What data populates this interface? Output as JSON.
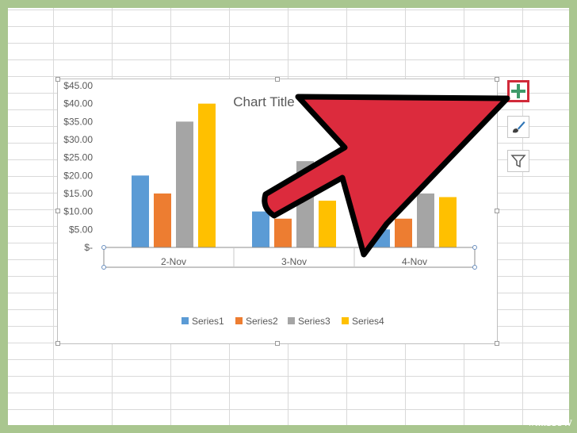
{
  "chart_data": {
    "type": "bar",
    "title": "Chart Title",
    "categories": [
      "2-Nov",
      "3-Nov",
      "4-Nov"
    ],
    "series": [
      {
        "name": "Series1",
        "color": "#5b9bd5",
        "values": [
          20,
          10,
          5
        ]
      },
      {
        "name": "Series2",
        "color": "#ed7d31",
        "values": [
          15,
          8,
          8
        ]
      },
      {
        "name": "Series3",
        "color": "#a5a5a5",
        "values": [
          35,
          24,
          15
        ]
      },
      {
        "name": "Series4",
        "color": "#ffc000",
        "values": [
          40,
          13,
          14
        ]
      }
    ],
    "ylim": [
      0,
      45
    ],
    "yticks": [
      0,
      5,
      10,
      15,
      20,
      25,
      30,
      35,
      40,
      45
    ],
    "ytick_labels": [
      "$-",
      "$5.00",
      "$10.00",
      "$15.00",
      "$20.00",
      "$25.00",
      "$30.00",
      "$35.00",
      "$40.00",
      "$45.00"
    ],
    "xlabel": "",
    "ylabel": "",
    "grid": false,
    "legend_position": "bottom"
  },
  "toolbar": {
    "chart_elements_icon": "plus-icon",
    "chart_styles_icon": "brush-icon",
    "chart_filters_icon": "filter-icon"
  },
  "annotation": {
    "arrow_color": "#dc2b3d"
  },
  "watermark": {
    "prefix": "wiki",
    "suffix": "How"
  }
}
